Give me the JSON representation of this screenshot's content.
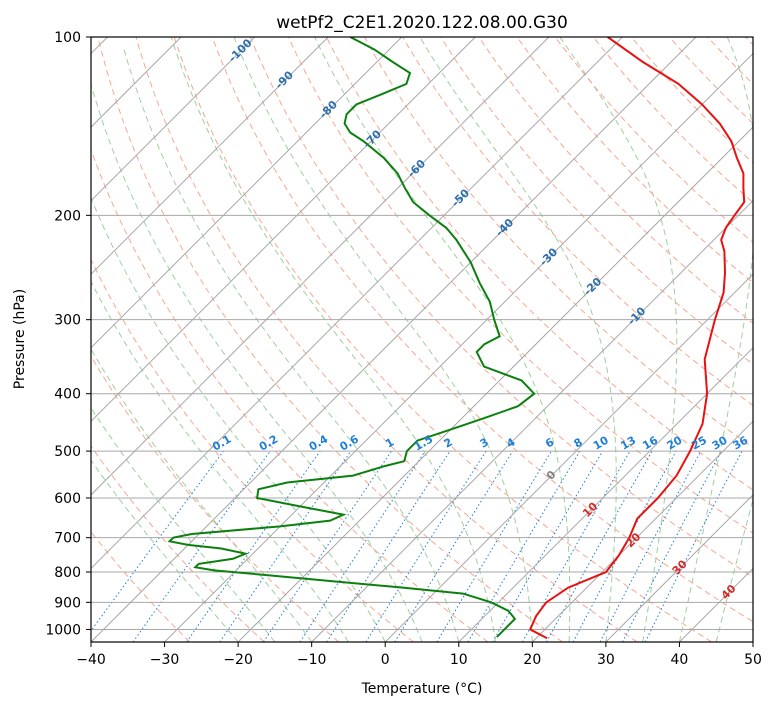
{
  "chart_data": {
    "type": "line",
    "subtype": "skew-t log-p diagram",
    "title": "wetPf2_C2E1.2020.122.08.00.G30",
    "xlabel": "Temperature (°C)",
    "ylabel": "Pressure (hPa)",
    "xlim": [
      -40,
      50
    ],
    "ylim_hpa": [
      1050,
      100
    ],
    "y_scale": "log",
    "skew": "45 degrees",
    "grid": true,
    "x_ticks": [
      "−40",
      "−30",
      "−20",
      "−10",
      "0",
      "10",
      "20",
      "30",
      "40",
      "50"
    ],
    "y_ticks": [
      "1000",
      "900",
      "800",
      "700",
      "600",
      "500",
      "400",
      "300",
      "200",
      "100"
    ],
    "isotherm_labels": [
      "-100",
      "-90",
      "-80",
      "-70",
      "-60",
      "-50",
      "-40",
      "-30",
      "-20",
      "-10",
      "0",
      "10",
      "20",
      "30",
      "40"
    ],
    "mixing_ratio_labels": [
      "0.1",
      "0.2",
      "0.4",
      "0.6",
      "1",
      "1.5",
      "2",
      "3",
      "4",
      "6",
      "8",
      "10",
      "13",
      "16",
      "20",
      "25",
      "30",
      "36"
    ],
    "series": [
      {
        "variable": "temperature",
        "color": "#e8110f",
        "points": [
          [
            1035,
            21.5
          ],
          [
            1000,
            18
          ],
          [
            950,
            17
          ],
          [
            900,
            16.5
          ],
          [
            850,
            17.5
          ],
          [
            800,
            20.5
          ],
          [
            750,
            20
          ],
          [
            700,
            19
          ],
          [
            650,
            17.5
          ],
          [
            600,
            17.5
          ],
          [
            550,
            17
          ],
          [
            500,
            15.5
          ],
          [
            450,
            13.5
          ],
          [
            400,
            10
          ],
          [
            350,
            5
          ],
          [
            300,
            1
          ],
          [
            270,
            -1.5
          ],
          [
            250,
            -4
          ],
          [
            230,
            -7
          ],
          [
            220,
            -9
          ],
          [
            210,
            -10
          ],
          [
            200,
            -10.5
          ],
          [
            190,
            -11
          ],
          [
            180,
            -13
          ],
          [
            170,
            -15
          ],
          [
            160,
            -18
          ],
          [
            150,
            -21
          ],
          [
            140,
            -25
          ],
          [
            130,
            -30
          ],
          [
            120,
            -36
          ],
          [
            110,
            -44
          ],
          [
            100,
            -52
          ]
        ]
      },
      {
        "variable": "dewpoint",
        "color": "#0c800f",
        "points": [
          [
            1030,
            14.5
          ],
          [
            1000,
            14.5
          ],
          [
            960,
            14.5
          ],
          [
            930,
            12.5
          ],
          [
            900,
            9
          ],
          [
            870,
            4
          ],
          [
            850,
            -5
          ],
          [
            830,
            -15
          ],
          [
            810,
            -25
          ],
          [
            795,
            -33
          ],
          [
            785,
            -36
          ],
          [
            775,
            -36
          ],
          [
            760,
            -32
          ],
          [
            745,
            -31
          ],
          [
            730,
            -35
          ],
          [
            720,
            -40
          ],
          [
            710,
            -43
          ],
          [
            700,
            -43
          ],
          [
            690,
            -41
          ],
          [
            670,
            -30
          ],
          [
            655,
            -24
          ],
          [
            640,
            -23
          ],
          [
            620,
            -30
          ],
          [
            600,
            -37
          ],
          [
            580,
            -38
          ],
          [
            565,
            -35
          ],
          [
            550,
            -27
          ],
          [
            530,
            -24
          ],
          [
            520,
            -22
          ],
          [
            500,
            -23
          ],
          [
            480,
            -23
          ],
          [
            460,
            -20
          ],
          [
            440,
            -17
          ],
          [
            420,
            -14
          ],
          [
            400,
            -13.5
          ],
          [
            380,
            -17
          ],
          [
            360,
            -24
          ],
          [
            340,
            -27
          ],
          [
            330,
            -27
          ],
          [
            320,
            -26
          ],
          [
            300,
            -29
          ],
          [
            280,
            -32
          ],
          [
            260,
            -36
          ],
          [
            240,
            -40
          ],
          [
            220,
            -45
          ],
          [
            210,
            -48
          ],
          [
            200,
            -52
          ],
          [
            190,
            -56
          ],
          [
            180,
            -59
          ],
          [
            170,
            -62
          ],
          [
            160,
            -66
          ],
          [
            150,
            -71
          ],
          [
            145,
            -74
          ],
          [
            140,
            -76
          ],
          [
            135,
            -77
          ],
          [
            130,
            -77
          ],
          [
            125,
            -75
          ],
          [
            120,
            -73
          ],
          [
            115,
            -74
          ],
          [
            110,
            -78
          ],
          [
            105,
            -82
          ],
          [
            100,
            -87
          ]
        ]
      }
    ],
    "background_colors": {
      "isotherms": "#a8a8a8",
      "isobars": "#a8a8a8",
      "dry_adiabats": "#f5a891",
      "moist_adiabats": "#9fcf9f",
      "mixing_ratio": "#1f7fd8",
      "isotherm_labels_cold": "#2b6fae",
      "isotherm_labels_warm": "#d42a2a"
    }
  }
}
